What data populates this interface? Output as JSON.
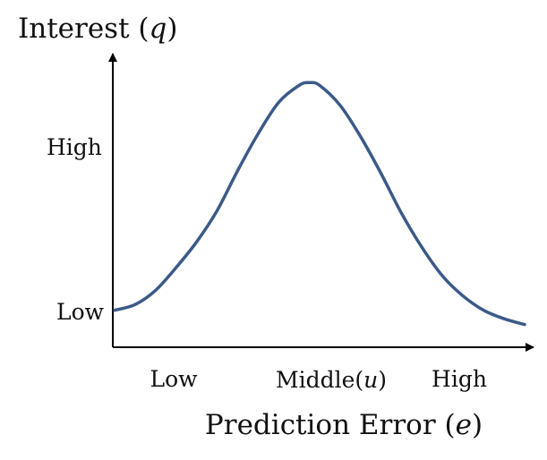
{
  "chart_data": {
    "type": "line",
    "title": "",
    "ylabel": {
      "text": "Interest",
      "var": "q"
    },
    "xlabel": {
      "text": "Prediction Error",
      "var": "e"
    },
    "x_ticks": [
      {
        "text": "Low",
        "var": ""
      },
      {
        "text": "Middle",
        "var": "u"
      },
      {
        "text": "High",
        "var": ""
      }
    ],
    "y_ticks": [
      "Low",
      "High"
    ],
    "xlim": [
      0,
      1
    ],
    "ylim": [
      0,
      1
    ],
    "grid": false,
    "legend": "none",
    "series": [
      {
        "x": [
          0,
          0.05,
          0.1,
          0.15,
          0.2,
          0.25,
          0.3,
          0.35,
          0.4,
          0.45,
          0.475,
          0.5,
          0.55,
          0.6,
          0.65,
          0.7,
          0.75,
          0.8,
          0.85,
          0.9,
          0.95,
          1.0
        ],
        "values": [
          0.13,
          0.15,
          0.2,
          0.28,
          0.37,
          0.48,
          0.62,
          0.75,
          0.86,
          0.92,
          0.93,
          0.92,
          0.85,
          0.74,
          0.61,
          0.47,
          0.35,
          0.25,
          0.18,
          0.13,
          0.1,
          0.08
        ]
      }
    ],
    "colors": {
      "line": "#3b5a88",
      "axis": "#000000"
    }
  }
}
